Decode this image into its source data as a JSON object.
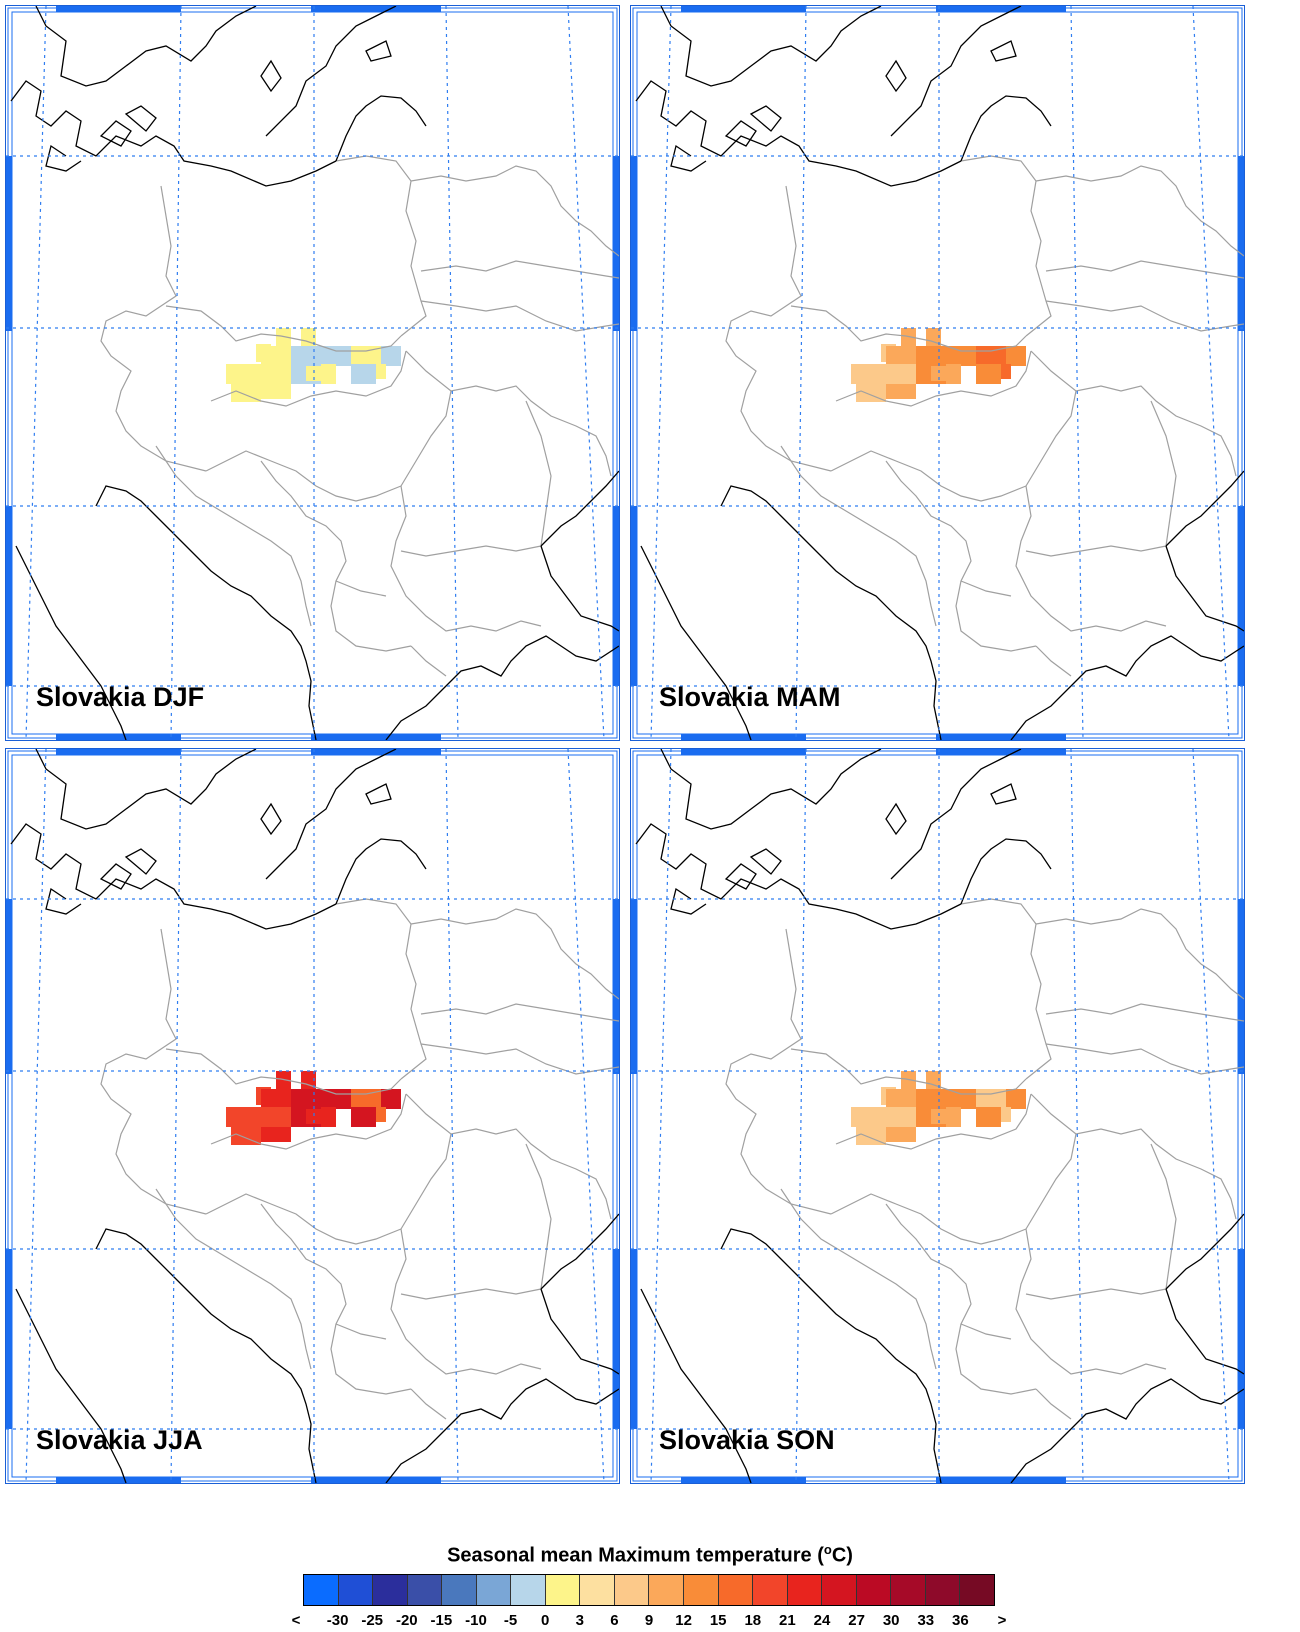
{
  "panels": [
    {
      "label": "Slovakia DJF",
      "season": "DJF"
    },
    {
      "label": "Slovakia MAM",
      "season": "MAM"
    },
    {
      "label": "Slovakia JJA",
      "season": "JJA"
    },
    {
      "label": "Slovakia SON",
      "season": "SON"
    }
  ],
  "legend": {
    "title": "Seasonal mean Maximum temperature (",
    "title_sup": "o",
    "title_end": "C)",
    "tick_labels": [
      "<",
      "-30",
      "-25",
      "-20",
      "-15",
      "-10",
      "-5",
      "0",
      "3",
      "6",
      "9",
      "12",
      "15",
      "18",
      "21",
      "24",
      "27",
      "30",
      "33",
      "36",
      ">"
    ],
    "colors": [
      "#0a6cff",
      "#1f4fd6",
      "#2b2e9c",
      "#3a4fa8",
      "#4a78bd",
      "#7aa6d6",
      "#b7d6ea",
      "#fdf48a",
      "#fde0a0",
      "#fcc98a",
      "#fba85a",
      "#f98c38",
      "#f76a2a",
      "#f2452a",
      "#e8241e",
      "#d41520",
      "#bb0a24",
      "#a60a28",
      "#8e0a2a",
      "#760a24"
    ]
  },
  "map_colors": {
    "frame_blue": "#1a6cf0",
    "graticule_blue": "#2f7df0",
    "coastline": "#000000",
    "borders": "#a0a0a0"
  },
  "overlay": {
    "DJF": {
      "palette": [
        "#fdf48a",
        "#fdf48a",
        "#b7d6ea",
        "#fdf48a"
      ]
    },
    "MAM": {
      "palette": [
        "#fcc98a",
        "#fba85a",
        "#f98c38",
        "#f76a2a"
      ]
    },
    "JJA": {
      "palette": [
        "#f2452a",
        "#e8241e",
        "#d41520",
        "#f76a2a"
      ]
    },
    "SON": {
      "palette": [
        "#fcc98a",
        "#fba85a",
        "#f98c38",
        "#fcc98a"
      ]
    }
  }
}
